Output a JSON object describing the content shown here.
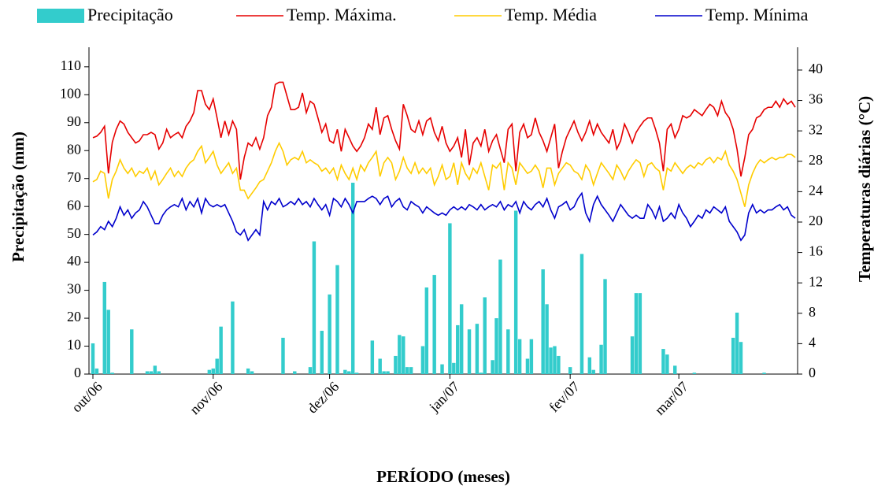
{
  "chart_data": {
    "type": "combo",
    "x_label": "PERÍODO (meses)",
    "y_label": "Precipitação (mm)",
    "y2_label": "Temperaturas diárias (°C)",
    "ylim": [
      0,
      117
    ],
    "yticks": [
      0,
      10,
      20,
      30,
      40,
      50,
      60,
      70,
      80,
      90,
      100,
      110
    ],
    "y2lim": [
      0,
      43
    ],
    "y2ticks": [
      0,
      4,
      8,
      12,
      16,
      20,
      24,
      28,
      32,
      36,
      40
    ],
    "legend": "top",
    "categories": [
      "out/06",
      null,
      null,
      null,
      null,
      null,
      null,
      null,
      null,
      null,
      null,
      null,
      null,
      null,
      null,
      null,
      null,
      null,
      null,
      null,
      null,
      null,
      null,
      null,
      null,
      null,
      null,
      null,
      null,
      null,
      null,
      "nov/06",
      null,
      null,
      null,
      null,
      null,
      null,
      null,
      null,
      null,
      null,
      null,
      null,
      null,
      null,
      null,
      null,
      null,
      null,
      null,
      null,
      null,
      null,
      null,
      null,
      null,
      null,
      null,
      null,
      null,
      "dez/06",
      null,
      null,
      null,
      null,
      null,
      null,
      null,
      null,
      null,
      null,
      null,
      null,
      null,
      null,
      null,
      null,
      null,
      null,
      null,
      null,
      null,
      null,
      null,
      null,
      null,
      null,
      null,
      null,
      null,
      null,
      "jan/07",
      null,
      null,
      null,
      null,
      null,
      null,
      null,
      null,
      null,
      null,
      null,
      null,
      null,
      null,
      null,
      null,
      null,
      null,
      null,
      null,
      null,
      null,
      null,
      null,
      null,
      null,
      null,
      null,
      null,
      null,
      "fev/07",
      null,
      null,
      null,
      null,
      null,
      null,
      null,
      null,
      null,
      null,
      null,
      null,
      null,
      null,
      null,
      null,
      null,
      null,
      null,
      null,
      null,
      null,
      null,
      null,
      null,
      null,
      null,
      "mar/07",
      null,
      null,
      null,
      null,
      null,
      null,
      null,
      null,
      null,
      null,
      null,
      null,
      null,
      null,
      null,
      null,
      null,
      null,
      null,
      null,
      null,
      null,
      null,
      null,
      null,
      null,
      null,
      null,
      null,
      null
    ],
    "series": [
      {
        "name": "Precipitação",
        "type": "bar",
        "color": "#33cccc",
        "values": [
          11,
          2,
          0,
          33,
          23,
          0.5,
          0,
          0,
          0,
          0,
          16,
          0,
          0,
          0,
          1,
          1,
          3,
          1,
          0,
          0,
          0,
          0,
          0,
          0,
          0,
          0,
          0,
          0,
          0,
          0,
          1.5,
          2,
          5.5,
          17,
          0,
          0,
          26,
          0,
          0,
          0,
          2,
          1,
          0,
          0,
          0,
          0,
          0,
          0,
          0,
          13,
          0,
          0,
          1,
          0,
          0,
          0,
          2.5,
          47.5,
          0,
          15.5,
          0,
          28.5,
          0,
          39,
          0,
          1.5,
          1,
          68.5,
          0.5,
          0,
          0,
          0,
          12,
          0,
          5.5,
          1,
          1,
          0,
          6.5,
          14,
          13.5,
          2.5,
          2.5,
          0,
          0,
          10,
          31,
          0,
          35.5,
          0,
          3.5,
          0,
          54,
          4,
          17.5,
          25,
          0,
          16,
          0,
          18,
          0.5,
          27.5,
          0,
          5,
          20,
          41,
          0,
          16,
          0,
          58.5,
          12.5,
          0,
          5.5,
          12.5,
          0,
          0,
          37.5,
          25,
          9.5,
          10,
          6.5,
          0,
          0,
          2.5,
          0,
          0,
          43,
          0,
          6,
          1.5,
          0,
          10.5,
          34,
          0,
          0,
          0,
          0,
          0,
          0,
          13.5,
          29,
          29,
          0,
          0,
          0,
          0,
          0,
          9,
          7,
          0,
          3,
          0,
          0,
          0,
          0,
          0.5,
          0,
          0,
          0,
          0,
          0,
          0,
          0,
          0,
          0,
          13,
          22,
          11.5,
          0,
          0,
          0,
          0,
          0,
          0.5,
          0,
          0,
          0,
          0,
          0,
          0,
          0,
          0
        ]
      },
      {
        "name": "Temp. Máxima.",
        "type": "line",
        "axis": "y2",
        "color": "#e60000",
        "values": [
          31.1,
          31.3,
          31.8,
          32.6,
          26.4,
          30.5,
          32.2,
          33.3,
          32.9,
          31.8,
          31.1,
          30.4,
          30.7,
          31.5,
          31.5,
          31.8,
          31.5,
          29.6,
          30.4,
          32.2,
          31.1,
          31.5,
          31.8,
          31.1,
          32.6,
          33.3,
          34.4,
          37.3,
          37.3,
          35.5,
          34.8,
          36.2,
          33.7,
          31.1,
          33.3,
          31.5,
          33.3,
          32.2,
          25.6,
          28.5,
          30.4,
          30.0,
          31.1,
          29.6,
          31.1,
          34.0,
          35.1,
          38.1,
          38.4,
          38.4,
          36.6,
          34.8,
          34.8,
          35.1,
          37.0,
          34.4,
          35.9,
          35.5,
          33.7,
          31.8,
          32.9,
          30.7,
          30.4,
          32.2,
          29.3,
          32.2,
          31.1,
          30.0,
          29.3,
          30.0,
          31.1,
          32.9,
          32.2,
          35.1,
          31.5,
          33.7,
          34.0,
          32.2,
          30.7,
          29.6,
          35.5,
          34.0,
          32.2,
          31.8,
          33.3,
          31.5,
          33.3,
          33.7,
          31.8,
          30.7,
          32.6,
          30.4,
          29.3,
          30.0,
          31.1,
          28.5,
          32.2,
          27.5,
          30.4,
          31.1,
          30.0,
          32.2,
          29.3,
          30.7,
          31.5,
          29.6,
          27.8,
          32.2,
          32.9,
          26.7,
          31.8,
          32.9,
          31.1,
          31.5,
          33.7,
          31.8,
          30.7,
          29.3,
          31.1,
          32.9,
          27.1,
          29.3,
          31.1,
          32.2,
          33.3,
          31.8,
          30.7,
          31.8,
          33.3,
          31.5,
          32.9,
          31.8,
          31.1,
          30.4,
          32.2,
          29.6,
          30.7,
          32.9,
          31.8,
          30.4,
          31.8,
          32.6,
          33.3,
          33.7,
          33.7,
          32.2,
          30.4,
          26.7,
          32.2,
          32.9,
          31.1,
          32.2,
          34.0,
          33.7,
          34.0,
          34.8,
          34.4,
          34.0,
          34.8,
          35.5,
          35.1,
          34.0,
          35.9,
          34.4,
          33.7,
          32.2,
          29.6,
          26.0,
          28.5,
          31.5,
          32.2,
          33.7,
          34.0,
          34.8,
          35.1,
          35.1,
          35.9,
          35.1,
          36.2,
          35.5,
          35.9,
          35.1
        ]
      },
      {
        "name": "Temp. Média",
        "type": "line",
        "axis": "y2",
        "color": "#ffcc00",
        "values": [
          25.3,
          25.6,
          26.7,
          26.4,
          23.1,
          25.6,
          26.7,
          28.2,
          27.1,
          26.4,
          27.1,
          26.0,
          26.7,
          26.4,
          27.1,
          25.6,
          26.7,
          24.9,
          25.6,
          26.4,
          27.1,
          26.0,
          26.7,
          26.0,
          27.1,
          27.8,
          28.2,
          29.3,
          30.0,
          27.8,
          28.5,
          29.3,
          27.5,
          26.4,
          27.1,
          27.8,
          26.4,
          27.1,
          24.2,
          24.2,
          23.1,
          23.8,
          24.5,
          25.3,
          25.6,
          26.7,
          27.8,
          29.3,
          30.4,
          29.3,
          27.5,
          28.2,
          28.5,
          28.2,
          29.3,
          27.8,
          28.2,
          27.8,
          27.5,
          26.7,
          27.1,
          26.4,
          27.1,
          25.6,
          27.5,
          26.4,
          25.6,
          27.1,
          25.6,
          27.5,
          26.7,
          27.8,
          28.5,
          29.3,
          26.0,
          27.8,
          28.5,
          27.8,
          25.6,
          26.7,
          28.5,
          27.1,
          26.4,
          27.8,
          26.4,
          27.1,
          26.4,
          27.1,
          24.9,
          26.0,
          27.5,
          25.6,
          26.0,
          27.8,
          24.9,
          27.8,
          26.4,
          25.6,
          27.1,
          26.4,
          27.8,
          26.0,
          24.2,
          27.5,
          27.1,
          27.8,
          24.2,
          27.8,
          27.1,
          24.9,
          27.8,
          27.1,
          26.4,
          26.7,
          27.5,
          26.7,
          24.5,
          27.1,
          27.1,
          24.9,
          26.4,
          27.1,
          27.8,
          27.5,
          26.7,
          26.4,
          25.6,
          27.5,
          26.7,
          24.9,
          26.4,
          27.8,
          27.1,
          26.4,
          25.6,
          27.5,
          26.7,
          25.6,
          26.7,
          27.5,
          28.2,
          27.8,
          26.0,
          27.5,
          27.8,
          27.1,
          26.7,
          24.2,
          27.1,
          26.7,
          27.8,
          27.1,
          26.4,
          27.1,
          27.5,
          27.1,
          27.8,
          27.5,
          28.2,
          28.5,
          27.8,
          28.5,
          28.2,
          29.3,
          27.5,
          26.7,
          25.6,
          23.8,
          22.0,
          24.9,
          26.4,
          27.5,
          28.2,
          27.8,
          28.2,
          28.5,
          28.2,
          28.5,
          28.5,
          28.9,
          28.9,
          28.5
        ]
      },
      {
        "name": "Temp. Mínima",
        "type": "line",
        "axis": "y2",
        "color": "#0000cc",
        "values": [
          18.3,
          18.7,
          19.4,
          19.0,
          20.1,
          19.4,
          20.5,
          22.0,
          20.9,
          21.6,
          20.5,
          21.2,
          21.6,
          22.7,
          22.0,
          20.9,
          19.8,
          19.8,
          20.9,
          21.6,
          22.0,
          22.3,
          22.0,
          23.1,
          21.6,
          22.7,
          22.0,
          23.1,
          21.2,
          23.1,
          22.3,
          22.0,
          22.3,
          22.0,
          22.3,
          21.2,
          20.1,
          18.7,
          18.3,
          19.0,
          17.6,
          18.3,
          19.0,
          18.3,
          22.7,
          21.6,
          22.7,
          22.3,
          23.1,
          22.0,
          22.3,
          22.7,
          22.3,
          23.1,
          22.3,
          22.7,
          22.0,
          23.1,
          22.3,
          21.6,
          22.3,
          20.9,
          23.1,
          22.7,
          22.0,
          23.1,
          22.3,
          21.2,
          22.7,
          22.7,
          22.7,
          23.1,
          23.4,
          23.1,
          22.3,
          23.1,
          23.4,
          22.0,
          22.7,
          23.1,
          22.0,
          21.6,
          22.7,
          22.3,
          22.0,
          21.2,
          22.0,
          21.6,
          21.2,
          20.9,
          21.2,
          20.9,
          21.6,
          22.0,
          21.6,
          22.0,
          21.6,
          22.3,
          22.0,
          21.6,
          22.3,
          21.6,
          22.0,
          22.3,
          22.0,
          22.7,
          21.6,
          22.3,
          22.0,
          22.7,
          21.2,
          22.7,
          22.0,
          21.6,
          22.3,
          22.7,
          22.0,
          23.1,
          21.6,
          20.5,
          22.0,
          22.3,
          22.7,
          21.6,
          22.0,
          23.1,
          23.8,
          21.2,
          20.1,
          22.3,
          23.4,
          22.3,
          21.6,
          20.9,
          20.1,
          21.2,
          22.3,
          21.6,
          20.9,
          20.5,
          20.9,
          20.5,
          20.5,
          22.3,
          21.6,
          20.5,
          22.0,
          20.1,
          20.5,
          21.2,
          20.5,
          22.3,
          21.2,
          20.5,
          19.4,
          20.1,
          20.9,
          20.5,
          21.6,
          21.2,
          22.0,
          21.6,
          21.2,
          22.0,
          20.1,
          19.4,
          18.7,
          17.6,
          18.3,
          21.2,
          22.3,
          21.2,
          21.6,
          21.2,
          21.6,
          21.6,
          22.0,
          22.3,
          21.6,
          22.0,
          20.9,
          20.5
        ]
      }
    ]
  }
}
